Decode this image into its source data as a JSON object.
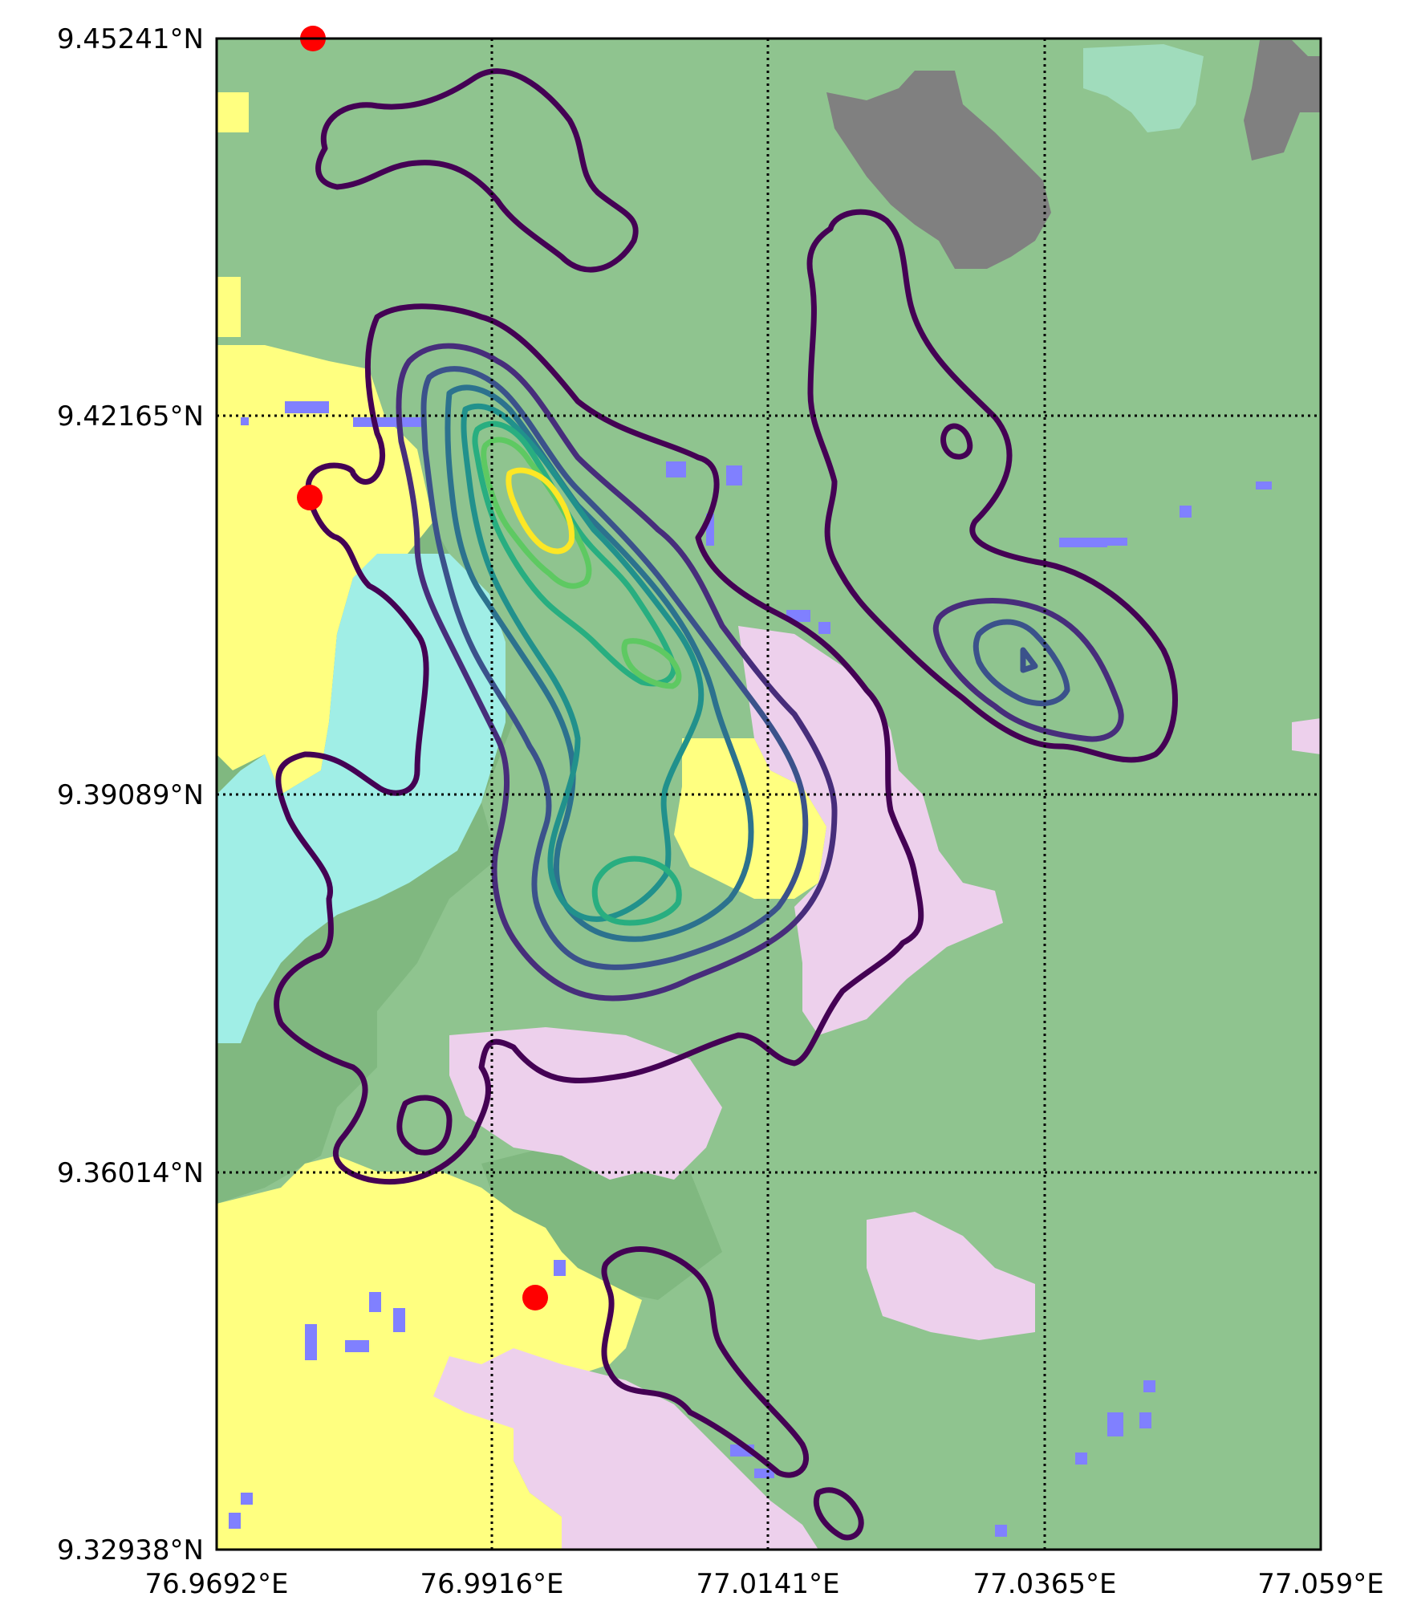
{
  "map": {
    "axes": {
      "lat_ticks": [
        "9.45241°N",
        "9.42165°N",
        "9.39089°N",
        "9.36014°N",
        "9.32938°N"
      ],
      "lon_ticks": [
        "76.9692°E",
        "76.9916°E",
        "77.0141°E",
        "77.0365°E",
        "77.059°E"
      ]
    },
    "extent": {
      "lon_min": 76.9692,
      "lon_max": 77.059,
      "lat_min": 9.32938,
      "lat_max": 9.45241
    },
    "gridlines": {
      "visible": true,
      "style": "dotted",
      "color": "#000000"
    },
    "landcover_colors": {
      "background": "#8fc48f",
      "darker_green": "#80b880",
      "yellow": "#ffff80",
      "cyan": "#a0eee6",
      "pink": "#edd0ec",
      "gray": "#808080",
      "light_teal": "#a0dcbc",
      "blue": "#8080ff"
    },
    "contour_colors": [
      "#440154",
      "#472d7b",
      "#3b528b",
      "#2c728e",
      "#21918c",
      "#28ae80",
      "#5ec962",
      "#addc30",
      "#fde725"
    ],
    "markers": {
      "color": "#ff0000",
      "points": [
        {
          "lon": 76.977,
          "lat": 9.45241
        },
        {
          "lon": 76.9766,
          "lat": 9.4153
        },
        {
          "lon": 76.995,
          "lat": 9.3481
        }
      ]
    }
  }
}
